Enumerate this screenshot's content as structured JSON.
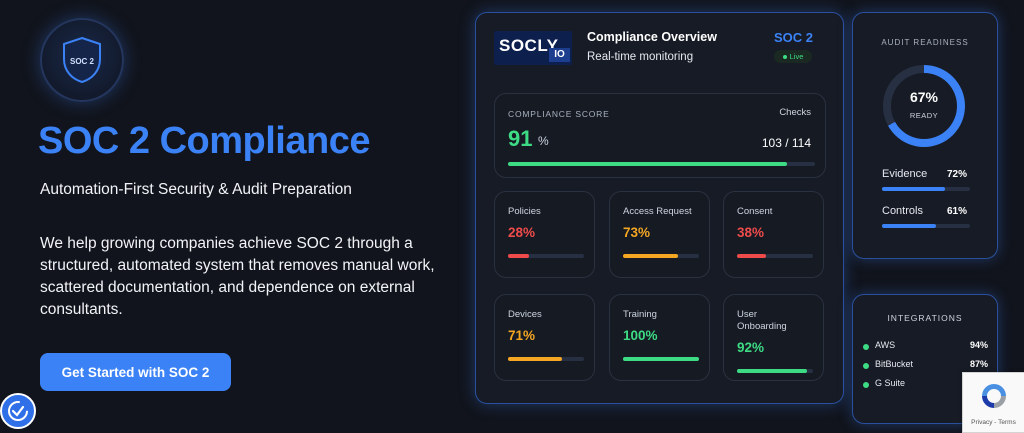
{
  "hero": {
    "badge_text": "SOC 2",
    "title": "SOC 2 Compliance",
    "subtitle": "Automation-First Security & Audit Preparation",
    "description": "We help growing companies achieve SOC 2 through a structured, automated system that removes manual work, scattered documentation, and dependence on external consultants.",
    "cta_label": "Get Started with SOC 2"
  },
  "overview": {
    "logo_text": "SOCLY",
    "logo_suffix": "IO",
    "title": "Compliance Overview",
    "subtitle": "Real-time monitoring",
    "framework": "SOC 2",
    "status": "Live",
    "score": {
      "label": "COMPLIANCE SCORE",
      "value": "91",
      "unit": "%",
      "percent": 91,
      "checks_label": "Checks",
      "checks_value": "103 / 114"
    },
    "metrics": [
      {
        "label": "Policies",
        "value": "28%",
        "percent": 28,
        "color": "#ef4b4b"
      },
      {
        "label": "Access Request",
        "value": "73%",
        "percent": 73,
        "color": "#f5a623"
      },
      {
        "label": "Consent",
        "value": "38%",
        "percent": 38,
        "color": "#ef4b4b"
      },
      {
        "label": "Devices",
        "value": "71%",
        "percent": 71,
        "color": "#f5a623"
      },
      {
        "label": "Training",
        "value": "100%",
        "percent": 100,
        "color": "#3ddc84"
      },
      {
        "label": "User Onboarding",
        "value": "92%",
        "percent": 92,
        "color": "#3ddc84"
      }
    ]
  },
  "audit": {
    "title": "AUDIT READINESS",
    "ring_value": "67%",
    "ring_label": "READY",
    "ring_percent": 67,
    "bars": [
      {
        "label": "Evidence",
        "value": "72%",
        "percent": 72
      },
      {
        "label": "Controls",
        "value": "61%",
        "percent": 61
      }
    ]
  },
  "integrations": {
    "title": "INTEGRATIONS",
    "items": [
      {
        "name": "AWS",
        "value": "94%"
      },
      {
        "name": "BitBucket",
        "value": "87%"
      },
      {
        "name": "G Suite",
        "value": ""
      }
    ]
  },
  "recaptcha": {
    "links": "Privacy - Terms"
  },
  "colors": {
    "accent": "#3b82f6",
    "success": "#3ddc84",
    "warning": "#f5a623",
    "danger": "#ef4b4b",
    "background": "#11141c"
  }
}
